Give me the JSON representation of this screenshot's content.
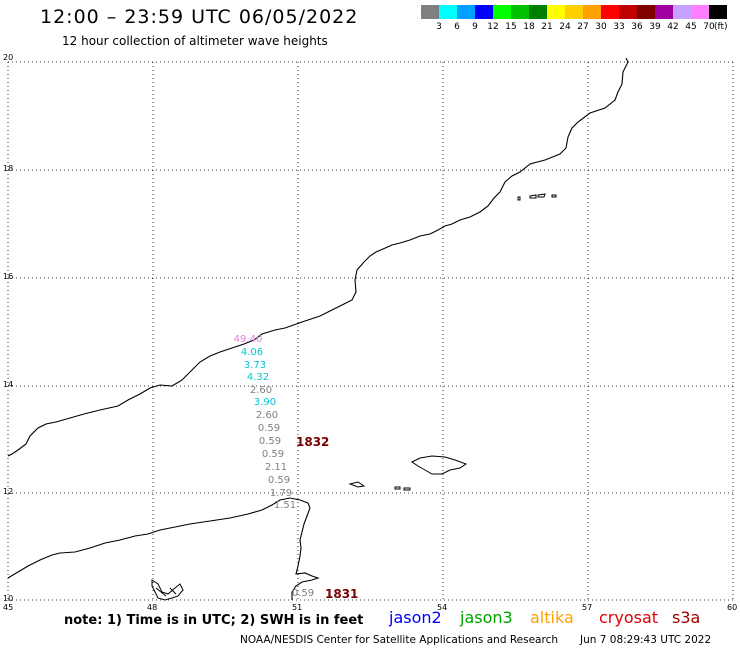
{
  "header": {
    "title": "12:00 – 23:59 UTC 06/05/2022",
    "subtitle": "12 hour collection of altimeter wave heights"
  },
  "legend": {
    "colors": [
      "#808080",
      "#00ffff",
      "#00a0ff",
      "#0000ff",
      "#00ff00",
      "#00c000",
      "#008000",
      "#ffff00",
      "#ffd000",
      "#ffa000",
      "#ff0000",
      "#c00000",
      "#800000",
      "#a000a0",
      "#c8a0ff",
      "#ff80ff",
      "#000000"
    ],
    "labels": [
      "3",
      "6",
      "9",
      "12",
      "15",
      "18",
      "21",
      "24",
      "27",
      "30",
      "33",
      "36",
      "39",
      "42",
      "45",
      "70"
    ],
    "unit": "(ft)"
  },
  "axes": {
    "lat_labels": [
      "20",
      "18",
      "16",
      "14",
      "12",
      "10"
    ],
    "lon_labels": [
      "45",
      "48",
      "51",
      "54",
      "57",
      "60"
    ]
  },
  "wave_heights": [
    {
      "value": "49.40",
      "color": "#e080e0"
    },
    {
      "value": "4.06",
      "color": "#00c8d8"
    },
    {
      "value": "3.73",
      "color": "#00c8d8"
    },
    {
      "value": "4.32",
      "color": "#00c8d8"
    },
    {
      "value": "2.60",
      "color": "#808080"
    },
    {
      "value": "3.90",
      "color": "#00c8d8"
    },
    {
      "value": "2.60",
      "color": "#808080"
    },
    {
      "value": "0.59",
      "color": "#808080"
    },
    {
      "value": "0.59",
      "color": "#808080"
    },
    {
      "value": "0.59",
      "color": "#808080"
    },
    {
      "value": "2.11",
      "color": "#808080"
    },
    {
      "value": "0.59",
      "color": "#808080"
    },
    {
      "value": "1.79",
      "color": "#808080"
    },
    {
      "value": "1.51",
      "color": "#808080"
    },
    {
      "value": "0.59",
      "color": "#808080"
    }
  ],
  "pass_times": [
    "1832",
    "1831"
  ],
  "notes": {
    "text": "note: 1) Time is in UTC; 2) SWH is in feet",
    "satellites": [
      {
        "name": "jason2",
        "color": "#0000ff"
      },
      {
        "name": "jason3",
        "color": "#00a000"
      },
      {
        "name": "altika",
        "color": "#ffa000"
      },
      {
        "name": "cryosat",
        "color": "#e00000"
      },
      {
        "name": "s3a",
        "color": "#a00000"
      }
    ]
  },
  "footer": {
    "credit": "NOAA/NESDIS Center for Satellite Applications and Research",
    "timestamp": "Jun  7 08:29:43 UTC 2022"
  }
}
